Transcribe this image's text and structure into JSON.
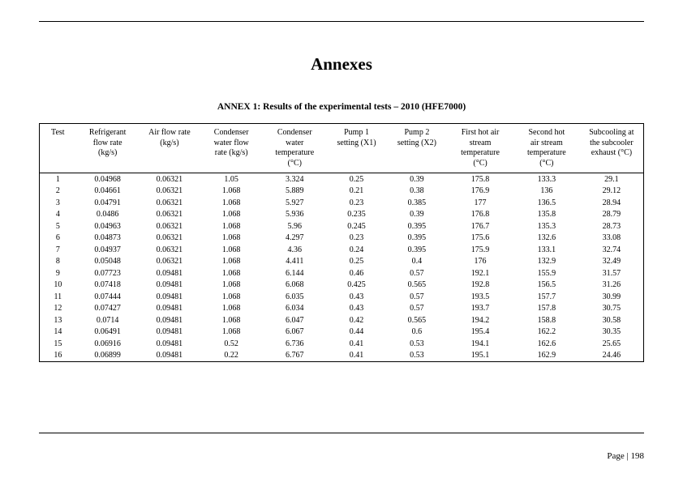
{
  "title": "Annexes",
  "subtitle": "ANNEX 1: Results of the experimental tests – 2010 (HFE7000)",
  "columns": [
    "Test",
    "Refrigerant flow rate (kg/s)",
    "Air flow rate (kg/s)",
    "Condenser water flow rate (kg/s)",
    "Condenser water temperature (°C)",
    "Pump 1 setting (X1)",
    "Pump 2 setting (X2)",
    "First hot air stream temperature (°C)",
    "Second hot air stream temperature (°C)",
    "Subcooling at the subcooler exhaust (°C)"
  ],
  "rows": [
    [
      "1",
      "0.04968",
      "0.06321",
      "1.05",
      "3.324",
      "0.25",
      "0.39",
      "175.8",
      "133.3",
      "29.1"
    ],
    [
      "2",
      "0.04661",
      "0.06321",
      "1.068",
      "5.889",
      "0.21",
      "0.38",
      "176.9",
      "136",
      "29.12"
    ],
    [
      "3",
      "0.04791",
      "0.06321",
      "1.068",
      "5.927",
      "0.23",
      "0.385",
      "177",
      "136.5",
      "28.94"
    ],
    [
      "4",
      "0.0486",
      "0.06321",
      "1.068",
      "5.936",
      "0.235",
      "0.39",
      "176.8",
      "135.8",
      "28.79"
    ],
    [
      "5",
      "0.04963",
      "0.06321",
      "1.068",
      "5.96",
      "0.245",
      "0.395",
      "176.7",
      "135.3",
      "28.73"
    ],
    [
      "6",
      "0.04873",
      "0.06321",
      "1.068",
      "4.297",
      "0.23",
      "0.395",
      "175.6",
      "132.6",
      "33.08"
    ],
    [
      "7",
      "0.04937",
      "0.06321",
      "1.068",
      "4.36",
      "0.24",
      "0.395",
      "175.9",
      "133.1",
      "32.74"
    ],
    [
      "8",
      "0.05048",
      "0.06321",
      "1.068",
      "4.411",
      "0.25",
      "0.4",
      "176",
      "132.9",
      "32.49"
    ],
    [
      "9",
      "0.07723",
      "0.09481",
      "1.068",
      "6.144",
      "0.46",
      "0.57",
      "192.1",
      "155.9",
      "31.57"
    ],
    [
      "10",
      "0.07418",
      "0.09481",
      "1.068",
      "6.068",
      "0.425",
      "0.565",
      "192.8",
      "156.5",
      "31.26"
    ],
    [
      "11",
      "0.07444",
      "0.09481",
      "1.068",
      "6.035",
      "0.43",
      "0.57",
      "193.5",
      "157.7",
      "30.99"
    ],
    [
      "12",
      "0.07427",
      "0.09481",
      "1.068",
      "6.034",
      "0.43",
      "0.57",
      "193.7",
      "157.8",
      "30.75"
    ],
    [
      "13",
      "0.0714",
      "0.09481",
      "1.068",
      "6.047",
      "0.42",
      "0.565",
      "194.2",
      "158.8",
      "30.58"
    ],
    [
      "14",
      "0.06491",
      "0.09481",
      "1.068",
      "6.067",
      "0.44",
      "0.6",
      "195.4",
      "162.2",
      "30.35"
    ],
    [
      "15",
      "0.06916",
      "0.09481",
      "0.52",
      "6.736",
      "0.41",
      "0.53",
      "194.1",
      "162.6",
      "25.65"
    ],
    [
      "16",
      "0.06899",
      "0.09481",
      "0.22",
      "6.767",
      "0.41",
      "0.53",
      "195.1",
      "162.9",
      "24.46"
    ]
  ],
  "footer": "Page | 198"
}
